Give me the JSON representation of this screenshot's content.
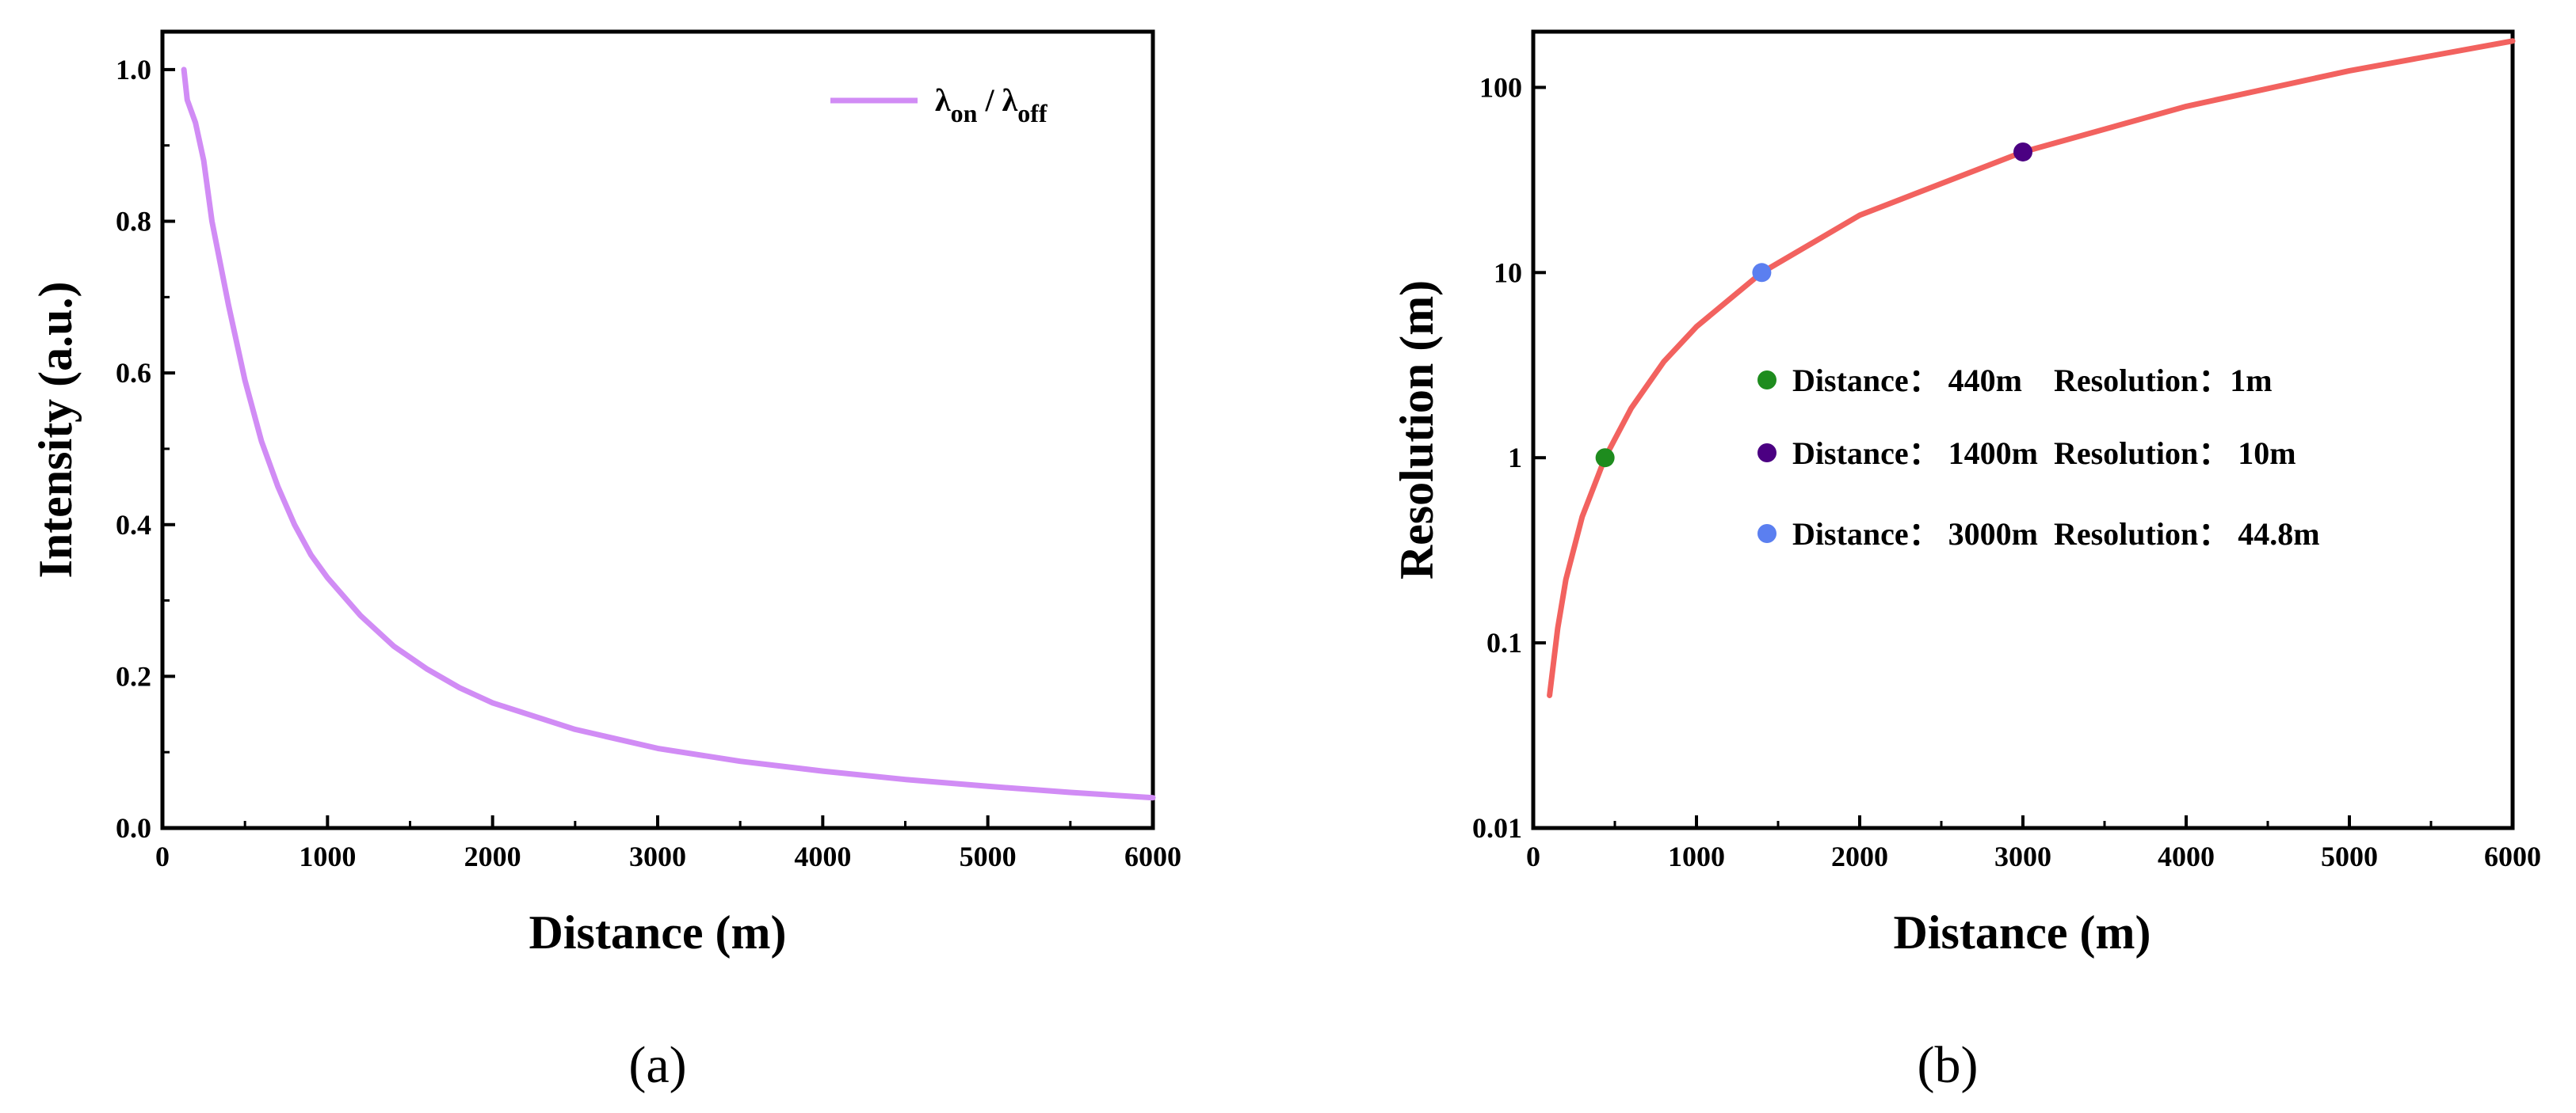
{
  "chart_data": [
    {
      "type": "line",
      "panel_label": "(a)",
      "title": "",
      "xlabel": "Distance (m)",
      "ylabel": "Intensity (a.u.)",
      "xlim": [
        0,
        6000
      ],
      "ylim": [
        0,
        1.05
      ],
      "xticks": [
        0,
        1000,
        2000,
        3000,
        4000,
        5000,
        6000
      ],
      "xtick_labels": [
        "0",
        "1000",
        "2000",
        "3000",
        "4000",
        "5000",
        "6000"
      ],
      "yticks": [
        0.0,
        0.2,
        0.4,
        0.6,
        0.8,
        1.0
      ],
      "ytick_labels": [
        "0.0",
        "0.2",
        "0.4",
        "0.6",
        "0.8",
        "1.0"
      ],
      "legend": {
        "position": "top-right",
        "entries": [
          {
            "name": "λon / λoff",
            "main": "λ",
            "sub1": "on",
            "sep": " / λ",
            "sub2": "off"
          }
        ]
      },
      "series": [
        {
          "name": "λon / λoff",
          "color": "#d18cf5",
          "x": [
            130,
            150,
            200,
            250,
            300,
            400,
            500,
            600,
            700,
            800,
            900,
            1000,
            1200,
            1400,
            1600,
            1800,
            2000,
            2500,
            3000,
            3500,
            4000,
            4500,
            5000,
            5500,
            6000
          ],
          "y": [
            1.0,
            0.96,
            0.93,
            0.88,
            0.8,
            0.69,
            0.59,
            0.51,
            0.45,
            0.4,
            0.36,
            0.33,
            0.28,
            0.24,
            0.21,
            0.185,
            0.165,
            0.13,
            0.105,
            0.088,
            0.075,
            0.064,
            0.055,
            0.047,
            0.04
          ]
        }
      ]
    },
    {
      "type": "line",
      "panel_label": "(b)",
      "title": "",
      "xlabel": "Distance (m)",
      "ylabel": "Resolution (m)",
      "yscale": "log",
      "xlim": [
        0,
        6000
      ],
      "ylim": [
        0.01,
        200
      ],
      "xticks": [
        0,
        1000,
        2000,
        3000,
        4000,
        5000,
        6000
      ],
      "xtick_labels": [
        "0",
        "1000",
        "2000",
        "3000",
        "4000",
        "5000",
        "6000"
      ],
      "yticks": [
        0.01,
        0.1,
        1,
        10,
        100
      ],
      "ytick_labels": [
        "0.01",
        "0.1",
        "1",
        "10",
        "100"
      ],
      "series": [
        {
          "name": "Resolution",
          "color": "#f2625f",
          "x": [
            100,
            150,
            200,
            300,
            440,
            600,
            800,
            1000,
            1400,
            2000,
            3000,
            4000,
            5000,
            6000
          ],
          "y": [
            0.052,
            0.12,
            0.22,
            0.48,
            1.0,
            1.85,
            3.3,
            5.1,
            10.0,
            20.4,
            44.8,
            79,
            123,
            178
          ]
        }
      ],
      "points": [
        {
          "distance": 440,
          "resolution": 1,
          "color": "#1e8c1e",
          "label": "Distance： 440m    Resolution：1m"
        },
        {
          "distance": 1400,
          "resolution": 10,
          "color": "#5b7ff0",
          "label": "Distance： 1400m  Resolution： 10m"
        },
        {
          "distance": 3000,
          "resolution": 44.8,
          "color": "#4b0082",
          "label": "Distance： 3000m  Resolution： 44.8m"
        }
      ],
      "legend": {
        "position": "center",
        "entries": [
          {
            "text": "Distance： 440m    Resolution：1m",
            "color": "#1e8c1e"
          },
          {
            "text": "Distance： 1400m  Resolution： 10m",
            "color": "#4b0082"
          },
          {
            "text": "Distance： 3000m  Resolution： 44.8m",
            "color": "#5b7ff0"
          }
        ]
      }
    }
  ]
}
